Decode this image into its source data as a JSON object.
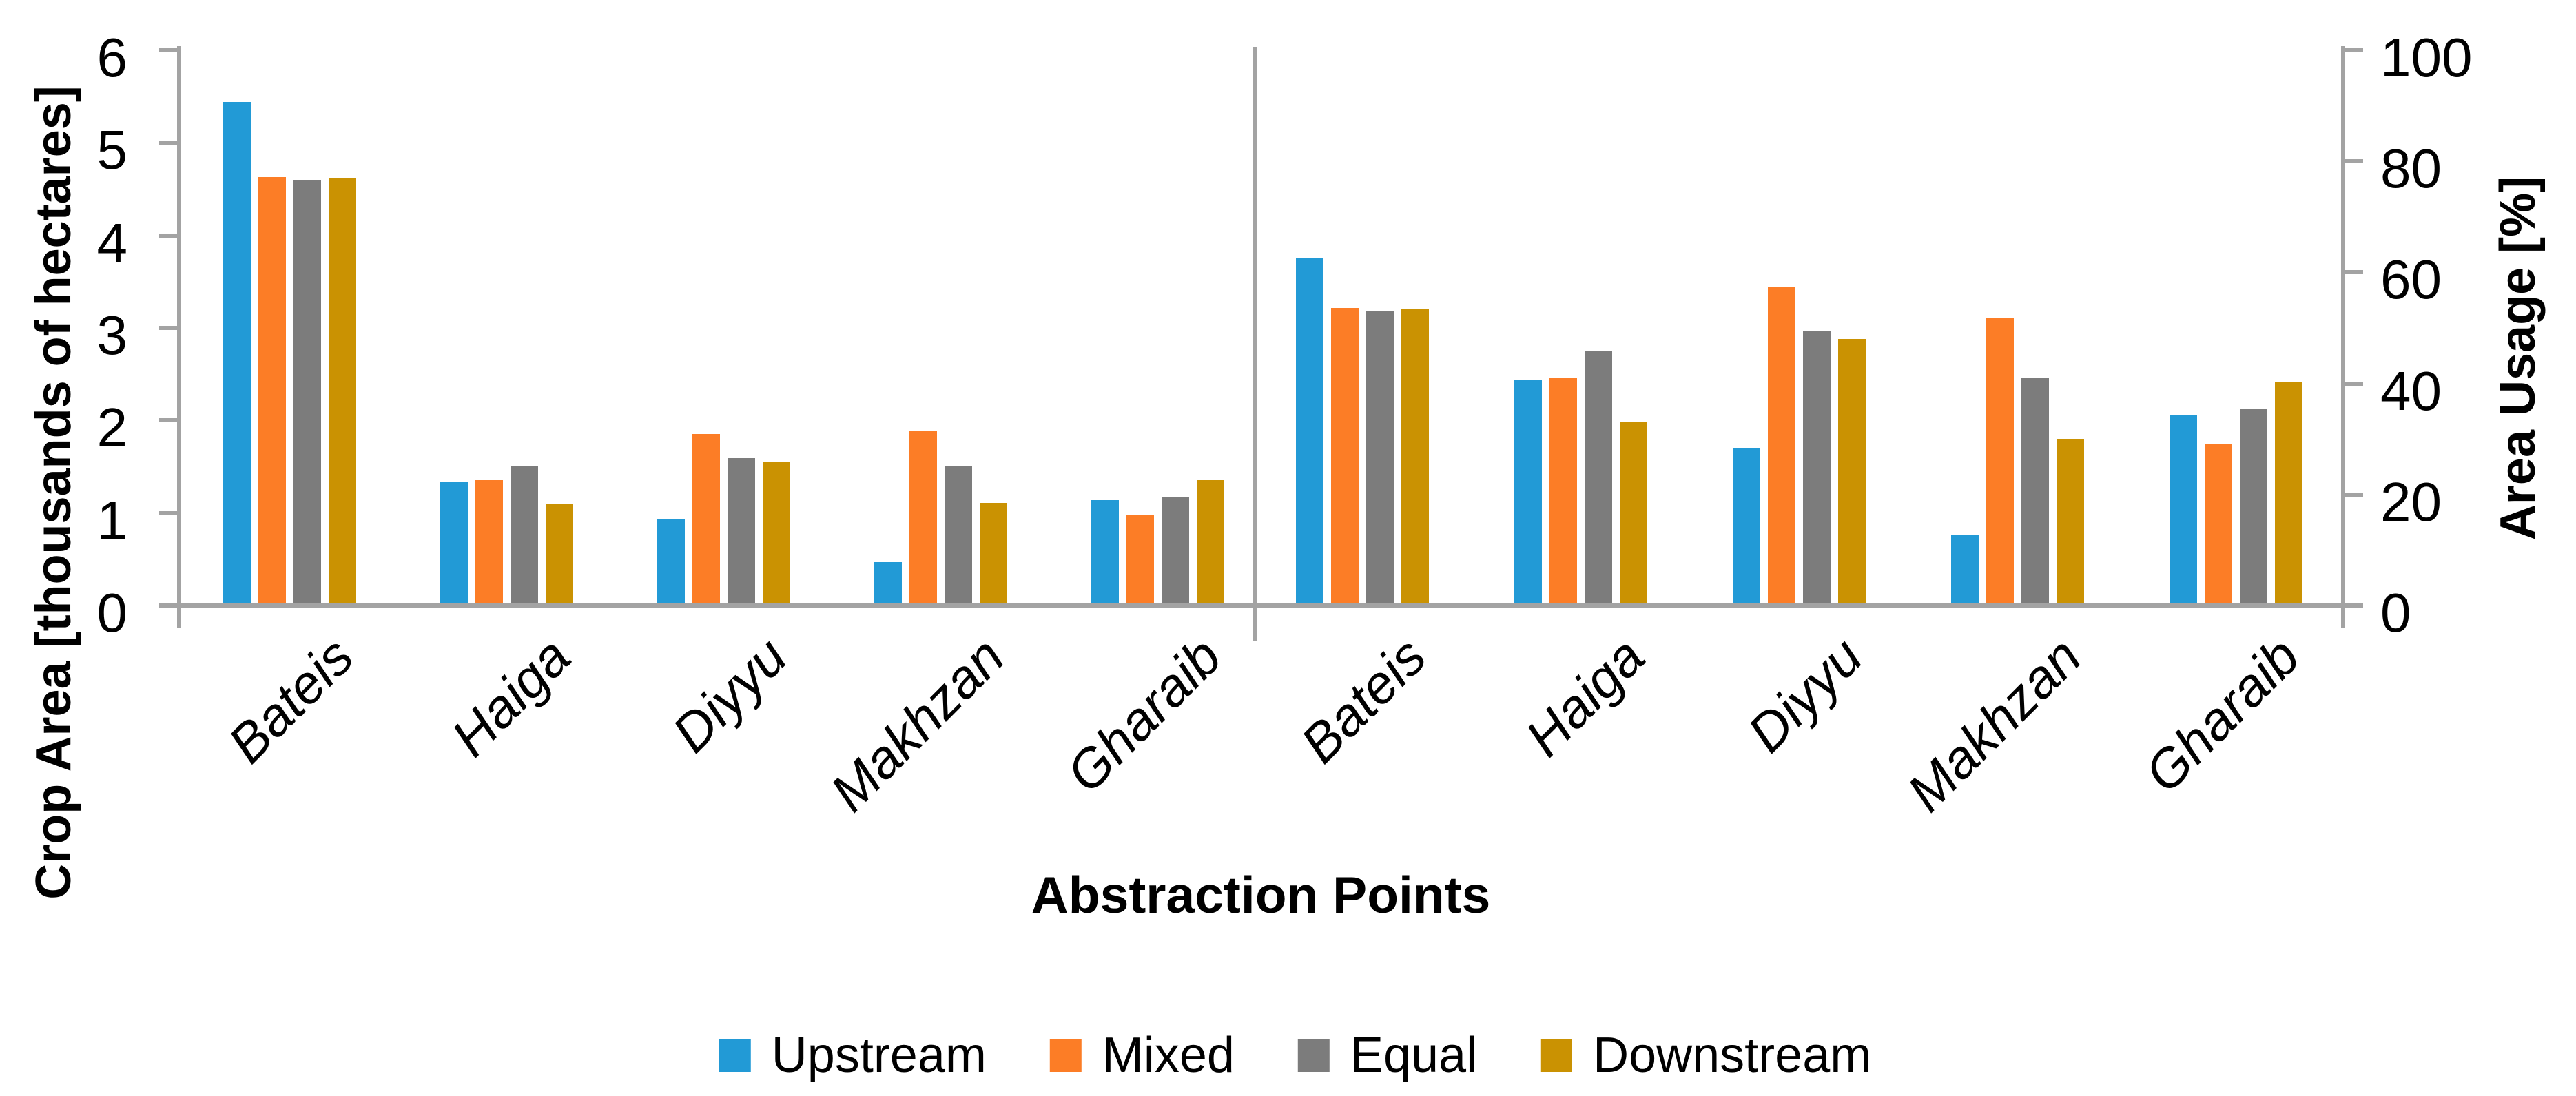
{
  "chart_data": {
    "type": "bar",
    "title": "",
    "xlabel": "Abstraction Points",
    "categories": [
      "Bateis",
      "Haiga",
      "Diyyu",
      "Makhzan",
      "Gharaib"
    ],
    "legend": {
      "position": "bottom",
      "entries": [
        "Upstream",
        "Mixed",
        "Equal",
        "Downstream"
      ]
    },
    "series_colors": {
      "Upstream": "#229AD6",
      "Mixed": "#FC7D26",
      "Equal": "#7C7C7C",
      "Downstream": "#CA9202"
    },
    "axis_color": "#A3A3A3",
    "grid": false,
    "panels": [
      {
        "name": "crop-area",
        "axis_side": "left",
        "ylabel": "Crop Area [thousands of hectares]",
        "ylim": [
          0,
          6
        ],
        "yticks": [
          0,
          1,
          2,
          3,
          4,
          5,
          6
        ],
        "categories": [
          "Bateis",
          "Haiga",
          "Diyyu",
          "Makhzan",
          "Gharaib"
        ],
        "series": [
          {
            "name": "Upstream",
            "values": [
              5.42,
              1.31,
              0.91,
              0.45,
              1.12
            ]
          },
          {
            "name": "Mixed",
            "values": [
              4.61,
              1.33,
              1.83,
              1.87,
              0.95
            ]
          },
          {
            "name": "Equal",
            "values": [
              4.58,
              1.48,
              1.57,
              1.48,
              1.15
            ]
          },
          {
            "name": "Downstream",
            "values": [
              4.59,
              1.07,
              1.53,
              1.09,
              1.33
            ]
          }
        ]
      },
      {
        "name": "area-usage",
        "axis_side": "right",
        "ylabel": "Area Usage [%]",
        "ylim": [
          0,
          100
        ],
        "yticks": [
          0,
          20,
          40,
          60,
          80,
          100
        ],
        "categories": [
          "Bateis",
          "Haiga",
          "Diyyu",
          "Makhzan",
          "Gharaib"
        ],
        "series": [
          {
            "name": "Upstream",
            "values": [
              62.3,
              40.2,
              28.1,
              12.4,
              33.9
            ]
          },
          {
            "name": "Mixed",
            "values": [
              53.2,
              40.6,
              57.1,
              51.4,
              28.6
            ]
          },
          {
            "name": "Equal",
            "values": [
              52.6,
              45.5,
              49.0,
              40.6,
              35.0
            ]
          },
          {
            "name": "Downstream",
            "values": [
              53.0,
              32.6,
              47.7,
              29.6,
              40.0
            ]
          }
        ]
      }
    ]
  }
}
